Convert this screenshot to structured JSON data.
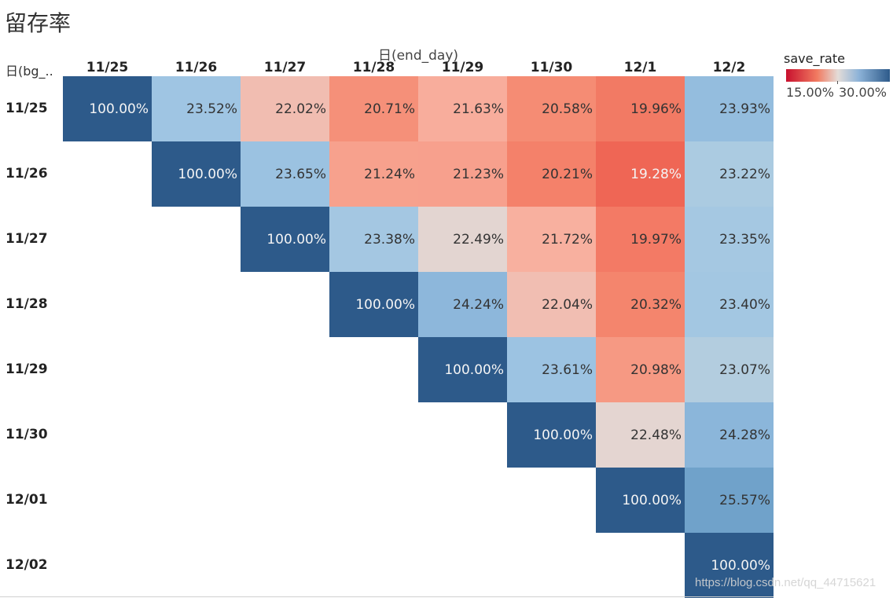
{
  "title": "留存率",
  "watermark": "https://blog.csdn.net/qq_44715621",
  "chart_data": {
    "type": "heatmap",
    "title": "留存率",
    "column_field": "日(end_day)",
    "row_field": "日(bg_..",
    "columns": [
      "11/25",
      "11/26",
      "11/27",
      "11/28",
      "11/29",
      "11/30",
      "12/1",
      "12/2"
    ],
    "rows": [
      "11/25",
      "11/26",
      "11/27",
      "11/28",
      "11/29",
      "11/30",
      "12/01",
      "12/02"
    ],
    "values": [
      [
        100.0,
        23.52,
        22.02,
        20.71,
        21.63,
        20.58,
        19.96,
        23.93
      ],
      [
        null,
        100.0,
        23.65,
        21.24,
        21.23,
        20.21,
        19.28,
        23.22
      ],
      [
        null,
        null,
        100.0,
        23.38,
        22.49,
        21.72,
        19.97,
        23.35
      ],
      [
        null,
        null,
        null,
        100.0,
        24.24,
        22.04,
        20.32,
        23.4
      ],
      [
        null,
        null,
        null,
        null,
        100.0,
        23.61,
        20.98,
        23.07
      ],
      [
        null,
        null,
        null,
        null,
        null,
        100.0,
        22.48,
        24.28
      ],
      [
        null,
        null,
        null,
        null,
        null,
        null,
        100.0,
        25.57
      ],
      [
        null,
        null,
        null,
        null,
        null,
        null,
        null,
        100.0
      ]
    ],
    "legend": {
      "title": "save_rate",
      "min_label": "15.00%",
      "max_label": "30.00%",
      "colors": [
        "#c8102e",
        "#e3dcd8",
        "#2d5a8a"
      ]
    }
  }
}
